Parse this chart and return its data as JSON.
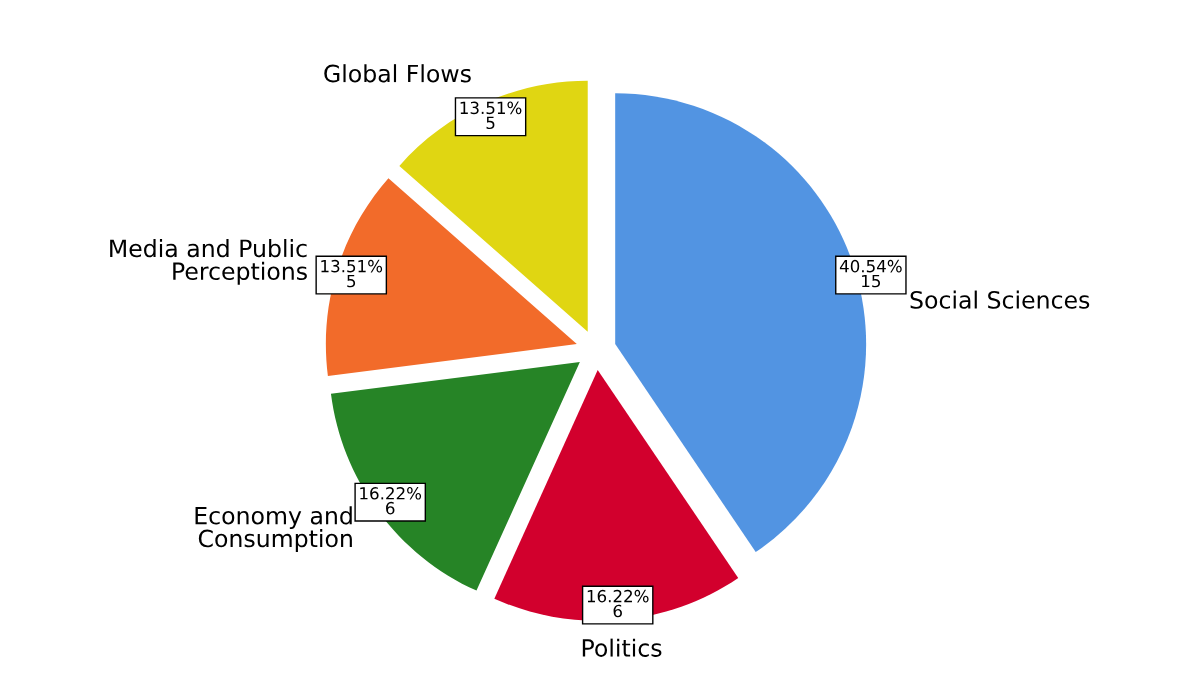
{
  "chart_data": {
    "type": "pie",
    "categories": [
      "Social Sciences",
      "Politics",
      "Economy and\nConsumption",
      "Media and Public\nPerceptions",
      "Global Flows"
    ],
    "values": [
      15,
      6,
      6,
      5,
      5
    ],
    "colors": [
      "#5294e2",
      "#d2002d",
      "#268426",
      "#f26b2a",
      "#e0d612"
    ],
    "value_labels": [
      "40.54%\n15",
      "16.22%\n6",
      "16.22%\n6",
      "13.51%\n5",
      "13.51%\n5"
    ],
    "legend": false
  }
}
